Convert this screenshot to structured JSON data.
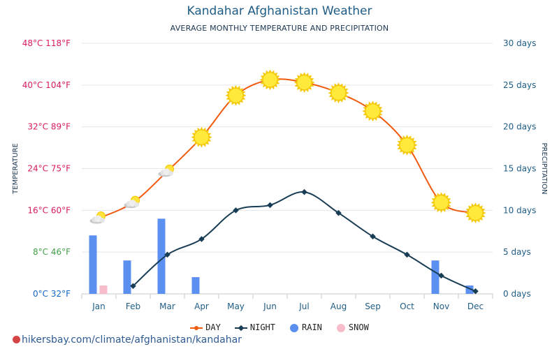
{
  "page": {
    "title": "Kandahar Afghanistan Weather",
    "subtitle": "AVERAGE MONTHLY TEMPERATURE AND PRECIPITATION",
    "footer": "hikersbay.com/climate/afghanistan/kandahar"
  },
  "colors": {
    "day": "#f05a0e",
    "night": "#183d55",
    "rain": "#5b8ff0",
    "snow": "#f8bccb",
    "temp_axis": "#d81b60",
    "precip_axis": "#1f5d86",
    "grid": "#e6e6e6"
  },
  "chart_data": {
    "type": "line",
    "categories": [
      "Jan",
      "Feb",
      "Mar",
      "Apr",
      "May",
      "Jun",
      "Jul",
      "Aug",
      "Sep",
      "Oct",
      "Nov",
      "Dec"
    ],
    "series": [
      {
        "name": "DAY",
        "unit": "°C",
        "values": [
          14.5,
          17.5,
          23.5,
          30,
          38,
          41,
          40.5,
          38.5,
          35,
          28.5,
          17.5,
          15.5
        ]
      },
      {
        "name": "NIGHT",
        "unit": "°C",
        "values": [
          null,
          1.5,
          7.5,
          10.5,
          16,
          17,
          19.5,
          15.5,
          11,
          7.5,
          3.5,
          0.5
        ]
      },
      {
        "name": "RAIN",
        "unit": "days",
        "type": "bar",
        "values": [
          7,
          4,
          9,
          2,
          0,
          0,
          0,
          0,
          0,
          0,
          4,
          1
        ]
      },
      {
        "name": "SNOW",
        "unit": "days",
        "type": "bar",
        "values": [
          1,
          0,
          0,
          0,
          0,
          0,
          0,
          0,
          0,
          0,
          0,
          0
        ]
      }
    ],
    "day_icons": [
      "partly-cloudy-icon",
      "partly-cloudy-icon",
      "partly-cloudy-icon",
      "sun-icon",
      "sun-icon",
      "sun-icon",
      "sun-icon",
      "sun-icon",
      "sun-icon",
      "sun-icon",
      "sun-icon",
      "sun-icon"
    ],
    "left_axis": {
      "label": "TEMPERATURE",
      "ylim": [
        0,
        48
      ],
      "ticks": [
        0,
        8,
        16,
        24,
        32,
        40,
        48
      ],
      "tick_labels": [
        "0°C 32°F",
        "8°C 46°F",
        "16°C 60°F",
        "24°C 75°F",
        "32°C 89°F",
        "40°C 104°F",
        "48°C 118°F"
      ],
      "tick_colors": [
        "#1565c0",
        "#43a047",
        "#d81b60",
        "#d81b60",
        "#d81b60",
        "#d81b60",
        "#d81b60"
      ]
    },
    "right_axis": {
      "label": "PRECIPITATION",
      "ylim": [
        0,
        30
      ],
      "ticks": [
        0,
        5,
        10,
        15,
        20,
        25,
        30
      ],
      "tick_labels": [
        "0 days",
        "5 days",
        "10 days",
        "15 days",
        "20 days",
        "25 days",
        "30 days"
      ]
    },
    "legend": [
      {
        "name": "DAY",
        "marker": "line-dot"
      },
      {
        "name": "NIGHT",
        "marker": "line-diamond"
      },
      {
        "name": "RAIN",
        "marker": "circle"
      },
      {
        "name": "SNOW",
        "marker": "circle"
      }
    ],
    "legend_position": "bottom",
    "grid": true
  }
}
